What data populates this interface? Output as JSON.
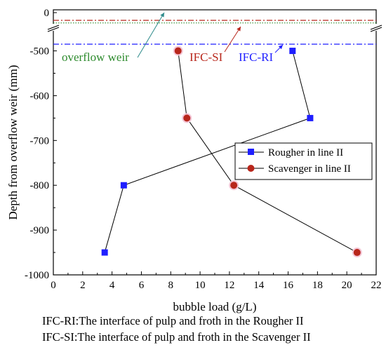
{
  "chart_data": {
    "type": "line",
    "xlabel": "bubble load (g/L)",
    "ylabel": "Depth from overflow weir (mm)",
    "xlim": [
      0,
      22
    ],
    "x_ticks": [
      0,
      2,
      4,
      6,
      8,
      10,
      12,
      14,
      16,
      18,
      20,
      22
    ],
    "y_ticks_lower": [
      -1000,
      -900,
      -800,
      -700,
      -600,
      -500
    ],
    "y_tick_upper": 0,
    "axis_break": true,
    "legend_position": "right",
    "series": [
      {
        "name": "Rougher in line II",
        "marker": "square",
        "color": "#1f1fff",
        "x": [
          3.5,
          4.8,
          17.5,
          16.3
        ],
        "y": [
          -950,
          -800,
          -650,
          -500
        ]
      },
      {
        "name": "Scavenger in line II",
        "marker": "circle",
        "color": "#b8261b",
        "x": [
          8.5,
          9.1,
          12.3,
          20.7
        ],
        "y": [
          -500,
          -650,
          -800,
          -950
        ]
      }
    ],
    "reference_lines": [
      {
        "name": "overflow weir",
        "color": "#2e8b2e",
        "style": "dotted",
        "y": -40
      },
      {
        "name": "IFC-SI",
        "color": "#b8261b",
        "style": "dash-dot",
        "y": -30
      },
      {
        "name": "IFC-RI",
        "color": "#1f1fff",
        "style": "dash-dot",
        "y": -485
      }
    ],
    "annotations": [
      {
        "text": "overflow weir",
        "color": "#2e8b2e"
      },
      {
        "text": "IFC-SI",
        "color": "#b8261b"
      },
      {
        "text": "IFC-RI",
        "color": "#1f1fff"
      }
    ]
  },
  "notes": [
    "IFC-RI:The interface of pulp and froth in the Rougher II",
    "IFC-SI:The interface of pulp and froth in the Scavenger II"
  ]
}
